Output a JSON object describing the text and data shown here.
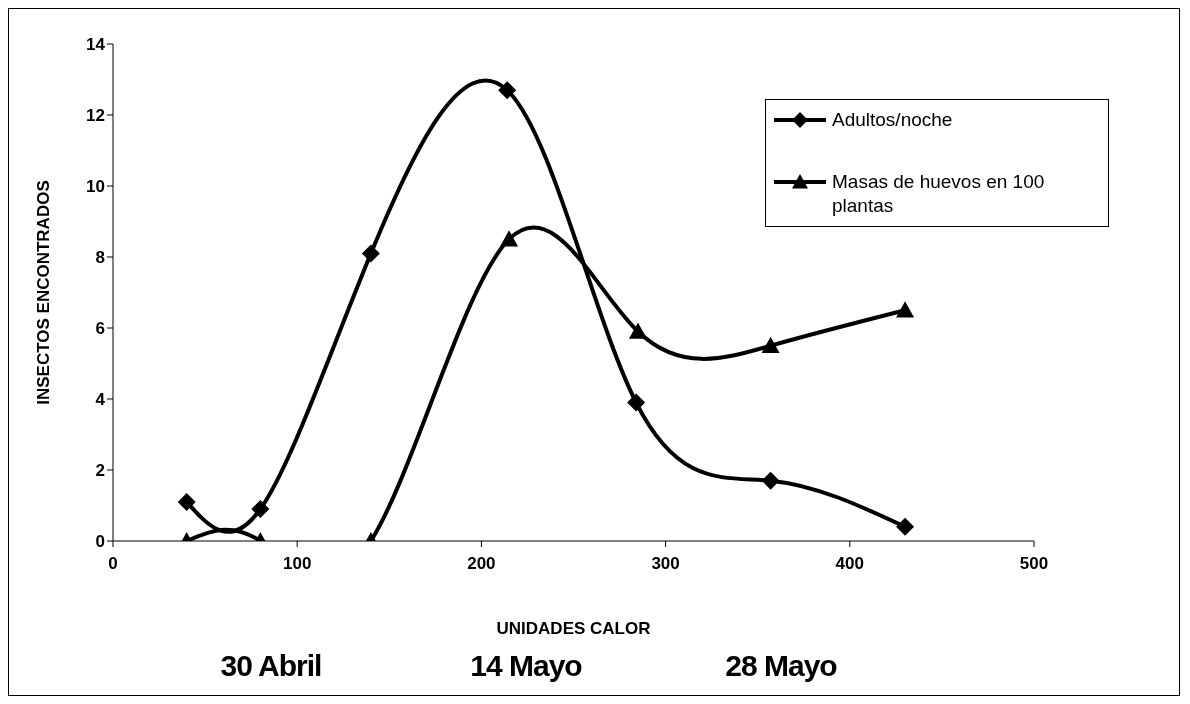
{
  "chart_data": {
    "type": "line",
    "xlabel": "UNIDADES CALOR",
    "ylabel": "INSECTOS ENCONTRADOS",
    "xlim": [
      0,
      500
    ],
    "xticks": [
      0,
      100,
      200,
      300,
      400,
      500
    ],
    "ylim": [
      0,
      14
    ],
    "yticks": [
      0,
      2,
      4,
      6,
      8,
      10,
      12,
      14
    ],
    "grid": false,
    "legend": "top right",
    "line_style": "solid",
    "series": [
      {
        "name": "Adultos/noche",
        "color": "#000000",
        "marker": "diamond",
        "x": [
          40,
          80,
          140,
          214,
          284,
          357,
          430
        ],
        "values": [
          1.1,
          0.9,
          8.1,
          12.7,
          3.9,
          1.7,
          0.4
        ]
      },
      {
        "name": "Masas de huevos en 100 plantas",
        "color": "#000000",
        "marker": "triangle",
        "x": [
          40,
          80,
          140,
          215,
          285,
          357,
          430
        ],
        "values": [
          0,
          0,
          0,
          8.5,
          5.9,
          5.5,
          6.5
        ]
      }
    ],
    "annotations": [
      "30 Abril",
      "14 Mayo",
      "28 Mayo"
    ]
  }
}
